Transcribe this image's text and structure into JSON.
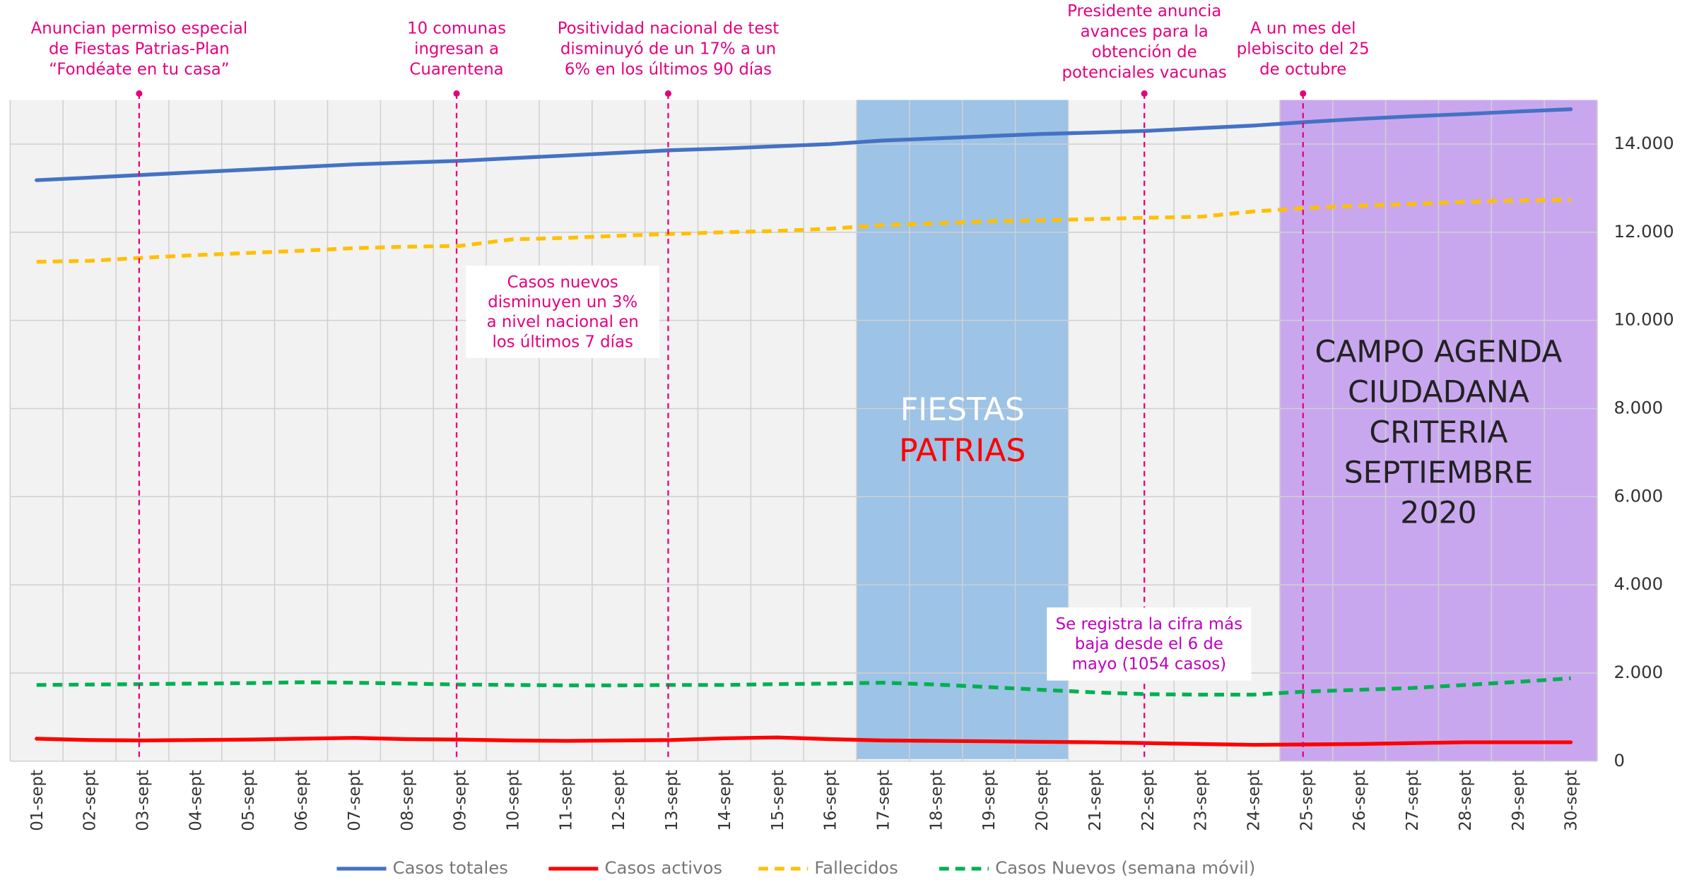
{
  "chart_data": {
    "type": "line",
    "categories": [
      "01-sept",
      "02-sept",
      "03-sept",
      "04-sept",
      "05-sept",
      "06-sept",
      "07-sept",
      "08-sept",
      "09-sept",
      "10-sept",
      "11-sept",
      "12-sept",
      "13-sept",
      "14-sept",
      "15-sept",
      "16-sept",
      "17-sept",
      "18-sept",
      "19-sept",
      "20-sept",
      "21-sept",
      "22-sept",
      "23-sept",
      "24-sept",
      "25-sept",
      "26-sept",
      "27-sept",
      "28-sept",
      "29-sept",
      "30-sept"
    ],
    "series": [
      {
        "name": "Casos totales",
        "color": "#4472c4",
        "dashed": false,
        "values": [
          13180,
          13240,
          13300,
          13360,
          13420,
          13480,
          13540,
          13580,
          13620,
          13680,
          13740,
          13800,
          13860,
          13900,
          13950,
          14000,
          14080,
          14130,
          14180,
          14230,
          14260,
          14300,
          14360,
          14420,
          14500,
          14570,
          14630,
          14680,
          14740,
          14790
        ]
      },
      {
        "name": "Casos activos",
        "color": "#ff0000",
        "dashed": false,
        "values": [
          510,
          480,
          470,
          480,
          490,
          510,
          530,
          500,
          490,
          470,
          460,
          470,
          480,
          520,
          540,
          500,
          470,
          460,
          450,
          440,
          430,
          410,
          390,
          370,
          380,
          390,
          410,
          430,
          430,
          430
        ]
      },
      {
        "name": "Fallecidos",
        "color": "#ffc000",
        "dashed": true,
        "values": [
          11330,
          11350,
          11420,
          11480,
          11530,
          11580,
          11640,
          11670,
          11690,
          11840,
          11870,
          11920,
          11960,
          12000,
          12030,
          12080,
          12160,
          12200,
          12250,
          12270,
          12300,
          12330,
          12350,
          12470,
          12550,
          12600,
          12640,
          12690,
          12720,
          12740
        ]
      },
      {
        "name": "Casos Nuevos (semana móvil)",
        "color": "#00b050",
        "dashed": true,
        "values": [
          1730,
          1740,
          1750,
          1760,
          1770,
          1790,
          1780,
          1760,
          1740,
          1730,
          1720,
          1720,
          1730,
          1730,
          1750,
          1760,
          1780,
          1740,
          1680,
          1620,
          1560,
          1520,
          1510,
          1510,
          1580,
          1620,
          1660,
          1730,
          1800,
          1880
        ]
      }
    ],
    "ylim": [
      0,
      15000
    ],
    "yticks": [
      {
        "value": 0,
        "label": "0"
      },
      {
        "value": 2000,
        "label": "2.000"
      },
      {
        "value": 4000,
        "label": "4.000"
      },
      {
        "value": 6000,
        "label": "6.000"
      },
      {
        "value": 8000,
        "label": "8.000"
      },
      {
        "value": 10000,
        "label": "10.000"
      },
      {
        "value": 12000,
        "label": "12.000"
      },
      {
        "value": 14000,
        "label": "14.000"
      }
    ],
    "grid": true,
    "legend": "bottom",
    "bands": [
      {
        "from": "17-sept",
        "to": "20-sept",
        "color": "#9dc3e6",
        "label": [
          "FIESTAS",
          "PATRIAS"
        ],
        "label_colors": [
          "#ffffff",
          "#ff0000"
        ]
      },
      {
        "from": "25-sept",
        "to": "30-sept",
        "color": "#c9a7ef",
        "label": [
          "CAMPO AGENDA",
          "CIUDADANA",
          "CRITERIA",
          "SEPTIEMBRE",
          "2020"
        ],
        "label_colors": [
          "#222222",
          "#222222",
          "#222222",
          "#222222",
          "#222222"
        ]
      }
    ],
    "events": [
      {
        "category": "03-sept",
        "text": [
          "Anuncian permiso especial",
          "de Fiestas Patrias-Plan",
          "“Fondéate en tu casa”"
        ]
      },
      {
        "category": "09-sept",
        "text": [
          "10 comunas",
          "ingresan a",
          "Cuarentena"
        ]
      },
      {
        "category": "13-sept",
        "text": [
          "Positividad nacional de test",
          "disminuyó de un 17% a un",
          "6% en los últimos 90 días"
        ]
      },
      {
        "category": "22-sept",
        "text": [
          "Presidente anuncia",
          "avances para la",
          "obtención de",
          "potenciales vacunas"
        ]
      },
      {
        "category": "25-sept",
        "text": [
          "A un mes del",
          "plebiscito del 25",
          "de octubre"
        ]
      }
    ],
    "notes": [
      {
        "text": [
          "Casos nuevos",
          "disminuyen un 3%",
          "a nivel nacional en",
          "los últimos 7 días"
        ],
        "color": "#e6007e"
      },
      {
        "text": [
          "Se registra la cifra más",
          "baja desde el 6 de",
          "mayo (1054 casos)"
        ],
        "color": "#c000c0"
      }
    ]
  }
}
